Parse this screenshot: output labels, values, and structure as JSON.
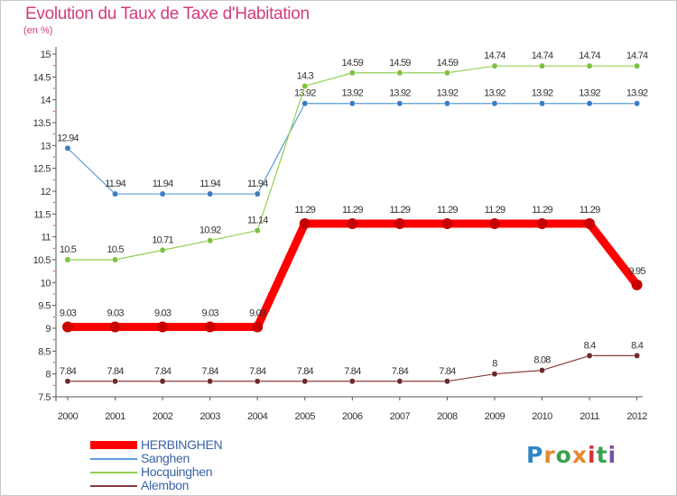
{
  "header": {
    "title": "Evolution du Taux de Taxe d'Habitation",
    "subtitle": "(en %)"
  },
  "logo": {
    "text": "Proxiti",
    "letters": [
      "P",
      "r",
      "o",
      "x",
      "i",
      "t",
      "i"
    ],
    "colors": [
      "#2f86c6",
      "#e8872a",
      "#3aa14d",
      "#e8872a",
      "#d6333a",
      "#3aa14d",
      "#7b4fa0"
    ]
  },
  "chart_data": {
    "type": "line",
    "title": "Evolution du Taux de Taxe d'Habitation",
    "ylabel": "(en %)",
    "xlabel": "",
    "x": [
      "2000",
      "2001",
      "2002",
      "2003",
      "2004",
      "2005",
      "2006",
      "2007",
      "2008",
      "2009",
      "2010",
      "2011",
      "2012"
    ],
    "ylim": [
      7.5,
      15
    ],
    "yticks": [
      "7.5",
      "8",
      "8.5",
      "9",
      "9.5",
      "10",
      "10.5",
      "11",
      "11.5",
      "12",
      "12.5",
      "13",
      "13.5",
      "14",
      "14.5",
      "15"
    ],
    "grid": false,
    "legend_position": "bottom-left",
    "series": [
      {
        "name": "HERBINGHEN",
        "color": "#ff0000",
        "dot": "#c80000",
        "emphasis": true,
        "values": [
          9.03,
          9.03,
          9.03,
          9.03,
          9.03,
          11.29,
          11.29,
          11.29,
          11.29,
          11.29,
          11.29,
          11.29,
          9.95
        ],
        "labels": [
          "9.03",
          "9.03",
          "9.03",
          "9.03",
          "9.03",
          "11.29",
          "11.29",
          "11.29",
          "11.29",
          "11.29",
          "11.29",
          "11.29",
          "9.95"
        ]
      },
      {
        "name": "Sanghen",
        "color": "#5b9bd5",
        "dot": "#3b7dc4",
        "emphasis": false,
        "values": [
          12.94,
          11.94,
          11.94,
          11.94,
          11.94,
          13.92,
          13.92,
          13.92,
          13.92,
          13.92,
          13.92,
          13.92,
          13.92
        ],
        "labels": [
          "12.94",
          "11.94",
          "11.94",
          "11.94",
          "11.94",
          "13.92",
          "13.92",
          "13.92",
          "13.92",
          "13.92",
          "13.92",
          "13.92",
          "13.92"
        ]
      },
      {
        "name": "Hocquinghen",
        "color": "#92d050",
        "dot": "#7cc242",
        "emphasis": false,
        "values": [
          10.5,
          10.5,
          10.71,
          10.92,
          11.14,
          14.3,
          14.59,
          14.59,
          14.59,
          14.74,
          14.74,
          14.74,
          14.74
        ],
        "labels": [
          "10.5",
          "10.5",
          "10.71",
          "10.92",
          "11.14",
          "14.3",
          "14.59",
          "14.59",
          "14.59",
          "14.74",
          "14.74",
          "14.74",
          "14.74"
        ]
      },
      {
        "name": "Alembon",
        "color": "#8b3a3a",
        "dot": "#6e2a2a",
        "emphasis": false,
        "values": [
          7.84,
          7.84,
          7.84,
          7.84,
          7.84,
          7.84,
          7.84,
          7.84,
          7.84,
          8,
          8.08,
          8.4,
          8.4
        ],
        "labels": [
          "7.84",
          "7.84",
          "7.84",
          "7.84",
          "7.84",
          "7.84",
          "7.84",
          "7.84",
          "7.84",
          "8",
          "8.08",
          "8.4",
          "8.4"
        ]
      }
    ]
  }
}
